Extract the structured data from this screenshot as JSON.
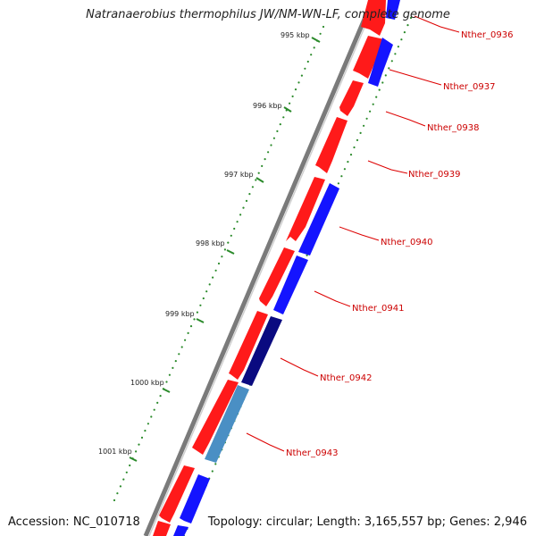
{
  "title": "Natranaerobius thermophilus JW/NM-WN-LF, complete genome",
  "footer": {
    "accession": "Accession: NC_010718",
    "summary": "Topology: circular; Length: 3,165,557 bp; Genes: 2,946"
  },
  "kbp_labels": [
    "995 kbp",
    "996 kbp",
    "997 kbp",
    "998 kbp",
    "999 kbp",
    "1000 kbp",
    "1001 kbp"
  ],
  "gene_labels": [
    "Nther_0936",
    "Nther_0937",
    "Nther_0938",
    "Nther_0939",
    "Nther_0940",
    "Nther_0941",
    "Nther_0942",
    "Nther_0943"
  ],
  "colors": {
    "forward_gene": "#ff1a1a",
    "reverse_gene": "#1414ff",
    "nther_0942": "#0a0a80",
    "nther_0943": "#4a8fc4",
    "tick": "#2a8a2a",
    "backbone": "#808080",
    "label": "#cc0000"
  }
}
